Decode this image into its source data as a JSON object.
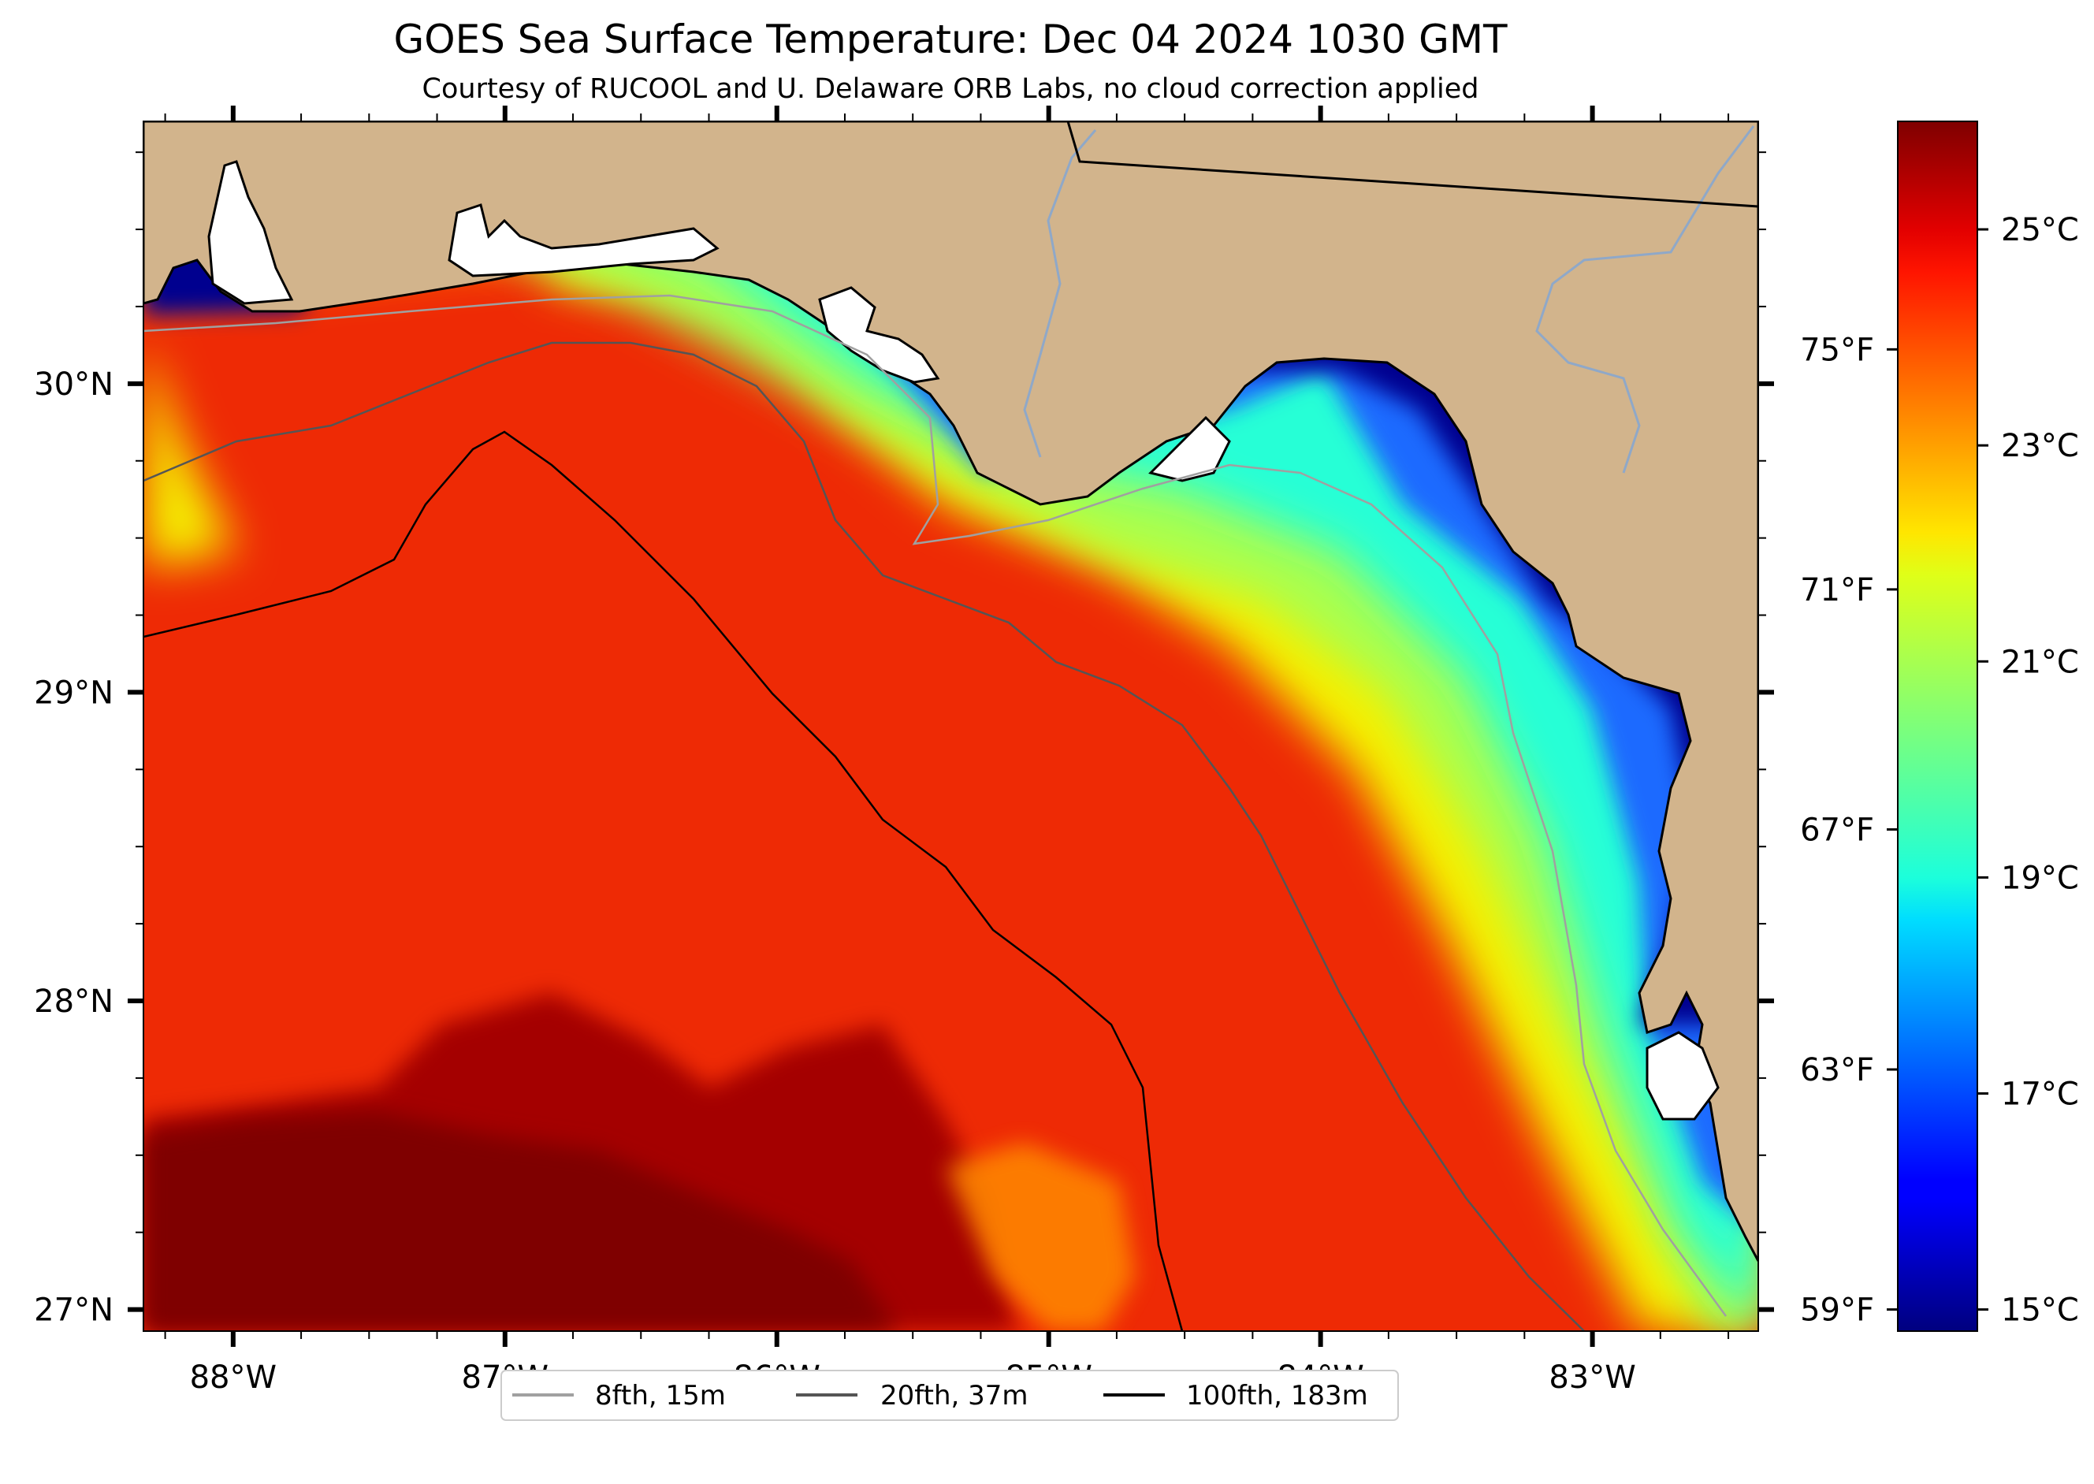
{
  "title": "GOES Sea Surface Temperature: Dec 04 2024 1030 GMT",
  "subtitle": "Courtesy of RUCOOL and U. Delaware ORB Labs, no cloud correction applied",
  "map": {
    "lon_range": [
      -88.33,
      -82.39
    ],
    "lat_range": [
      26.93,
      30.85
    ],
    "lon_ticks": [
      {
        "value": -88,
        "label": "88°W"
      },
      {
        "value": -87,
        "label": "87°W"
      },
      {
        "value": -86,
        "label": "86°W"
      },
      {
        "value": -85,
        "label": "85°W"
      },
      {
        "value": -84,
        "label": "84°W"
      },
      {
        "value": -83,
        "label": "83°W"
      }
    ],
    "lat_ticks": [
      {
        "value": 30,
        "label": "30°N"
      },
      {
        "value": 29,
        "label": "29°N"
      },
      {
        "value": 28,
        "label": "28°N"
      },
      {
        "value": 27,
        "label": "27°N"
      }
    ],
    "land_color": "#d2b48c",
    "legend": [
      {
        "label": "8fth, 15m",
        "color": "#a0a0a0"
      },
      {
        "label": "20fth, 37m",
        "color": "#555555"
      },
      {
        "label": "100fth, 183m",
        "color": "#000000"
      }
    ]
  },
  "colorbar": {
    "colormap": "jet",
    "range_c": [
      14.8,
      26.0
    ],
    "celsius_ticks": [
      {
        "value": 25,
        "label": "25°C"
      },
      {
        "value": 23,
        "label": "23°C"
      },
      {
        "value": 21,
        "label": "21°C"
      },
      {
        "value": 19,
        "label": "19°C"
      },
      {
        "value": 17,
        "label": "17°C"
      },
      {
        "value": 15,
        "label": "15°C"
      }
    ],
    "fahrenheit_ticks": [
      {
        "value": 75,
        "label": "75°F"
      },
      {
        "value": 71,
        "label": "71°F"
      },
      {
        "value": 67,
        "label": "67°F"
      },
      {
        "value": 63,
        "label": "63°F"
      },
      {
        "value": 59,
        "label": "59°F"
      }
    ]
  }
}
